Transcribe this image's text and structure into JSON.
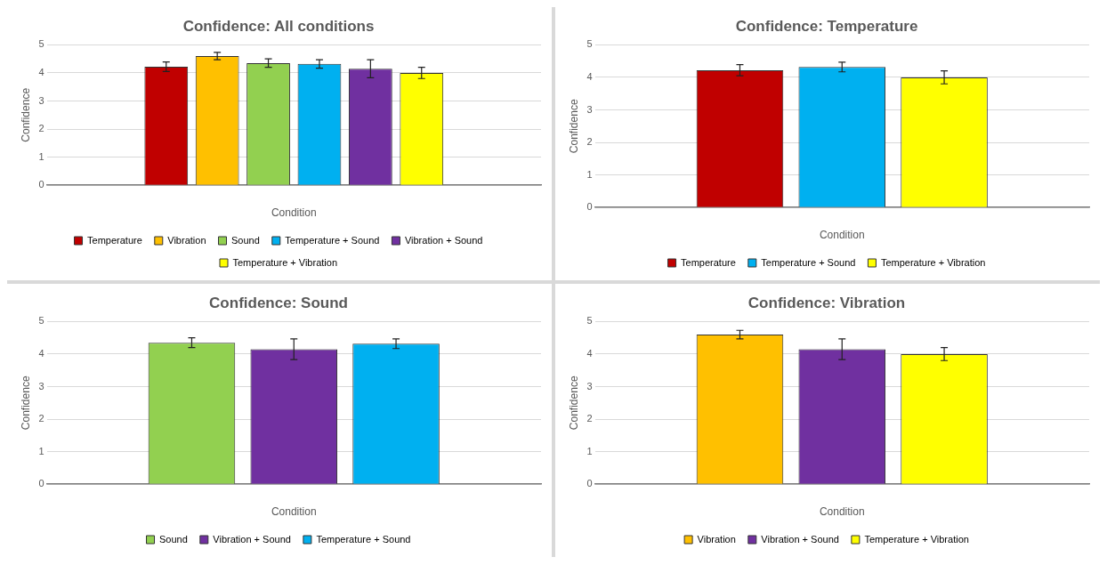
{
  "chart_data": [
    {
      "type": "bar",
      "title": "Confidence: All conditions",
      "xlabel": "Condition",
      "ylabel": "Confidence",
      "categories": [
        null
      ],
      "ylim": [
        0,
        5
      ],
      "yticks": [
        0,
        1,
        2,
        3,
        4,
        5
      ],
      "grid": "y",
      "legend": "bottom",
      "series": [
        {
          "name": "Temperature",
          "color": "#c00000",
          "values": [
            4.22
          ],
          "errors": [
            0.17
          ]
        },
        {
          "name": "Vibration",
          "color": "#ffc000",
          "values": [
            4.6
          ],
          "errors": [
            0.13
          ]
        },
        {
          "name": "Sound",
          "color": "#92d050",
          "values": [
            4.35
          ],
          "errors": [
            0.15
          ]
        },
        {
          "name": "Temperature + Sound",
          "color": "#00b0f0",
          "values": [
            4.32
          ],
          "errors": [
            0.15
          ]
        },
        {
          "name": "Vibration + Sound",
          "color": "#7030a0",
          "values": [
            4.15
          ],
          "errors": [
            0.32
          ]
        },
        {
          "name": "Temperature + Vibration",
          "color": "#ffff00",
          "values": [
            4.0
          ],
          "errors": [
            0.2
          ]
        }
      ]
    },
    {
      "type": "bar",
      "title": "Confidence: Temperature",
      "xlabel": "Condition",
      "ylabel": "Confidence",
      "categories": [
        null
      ],
      "ylim": [
        0,
        5
      ],
      "yticks": [
        0,
        1,
        2,
        3,
        4,
        5
      ],
      "grid": "y",
      "legend": "bottom",
      "series": [
        {
          "name": "Temperature",
          "color": "#c00000",
          "values": [
            4.22
          ],
          "errors": [
            0.17
          ]
        },
        {
          "name": "Temperature + Sound",
          "color": "#00b0f0",
          "values": [
            4.32
          ],
          "errors": [
            0.15
          ]
        },
        {
          "name": "Temperature + Vibration",
          "color": "#ffff00",
          "values": [
            4.0
          ],
          "errors": [
            0.2
          ]
        }
      ]
    },
    {
      "type": "bar",
      "title": "Confidence: Sound",
      "xlabel": "Condition",
      "ylabel": "Confidence",
      "categories": [
        null
      ],
      "ylim": [
        0,
        5
      ],
      "yticks": [
        0,
        1,
        2,
        3,
        4,
        5
      ],
      "grid": "y",
      "legend": "bottom",
      "series": [
        {
          "name": "Sound",
          "color": "#92d050",
          "values": [
            4.35
          ],
          "errors": [
            0.15
          ]
        },
        {
          "name": "Vibration + Sound",
          "color": "#7030a0",
          "values": [
            4.15
          ],
          "errors": [
            0.32
          ]
        },
        {
          "name": "Temperature + Sound",
          "color": "#00b0f0",
          "values": [
            4.32
          ],
          "errors": [
            0.15
          ]
        }
      ]
    },
    {
      "type": "bar",
      "title": "Confidence: Vibration",
      "xlabel": "Condition",
      "ylabel": "Confidence",
      "categories": [
        null
      ],
      "ylim": [
        0,
        5
      ],
      "yticks": [
        0,
        1,
        2,
        3,
        4,
        5
      ],
      "grid": "y",
      "legend": "bottom",
      "series": [
        {
          "name": "Vibration",
          "color": "#ffc000",
          "values": [
            4.6
          ],
          "errors": [
            0.13
          ]
        },
        {
          "name": "Vibration + Sound",
          "color": "#7030a0",
          "values": [
            4.15
          ],
          "errors": [
            0.32
          ]
        },
        {
          "name": "Temperature + Vibration",
          "color": "#ffff00",
          "values": [
            4.0
          ],
          "errors": [
            0.2
          ]
        }
      ]
    }
  ]
}
